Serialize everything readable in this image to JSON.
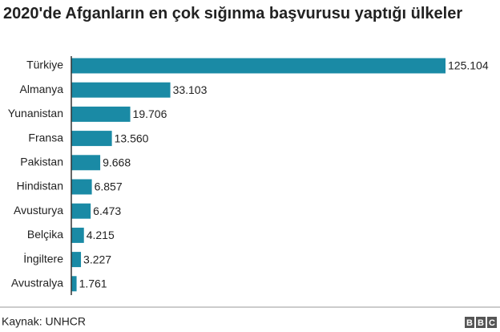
{
  "chart_data": {
    "type": "bar",
    "orientation": "horizontal",
    "title": "2020'de Afganların en çok sığınma başvurusu yaptığı ülkeler",
    "categories": [
      "Türkiye",
      "Almanya",
      "Yunanistan",
      "Fransa",
      "Pakistan",
      "Hindistan",
      "Avusturya",
      "Belçika",
      "İngiltere",
      "Avustralya"
    ],
    "values": [
      125104,
      33103,
      19706,
      13560,
      9668,
      6857,
      6473,
      4215,
      3227,
      1761
    ],
    "value_labels": [
      "125.104",
      "33.103",
      "19.706",
      "13.560",
      "9.668",
      "6.857",
      "6.473",
      "4.215",
      "3.227",
      "1.761"
    ],
    "color": "#1a8aa5",
    "source": "Kaynak: UNHCR",
    "logo": [
      "B",
      "B",
      "C"
    ]
  }
}
